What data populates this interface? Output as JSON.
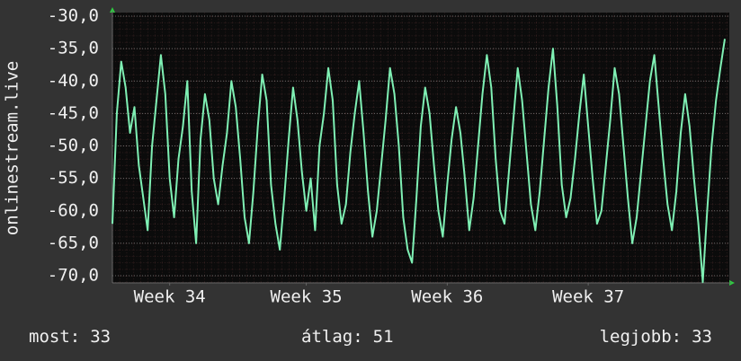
{
  "chart_data": {
    "type": "line",
    "y_label": "onlinestream.live",
    "x": [
      0,
      1,
      2,
      3,
      4,
      5,
      6,
      7,
      8,
      9,
      10,
      11,
      12,
      13,
      14,
      15,
      16,
      17,
      18,
      19,
      20,
      21,
      22,
      23,
      24,
      25,
      26,
      27,
      28,
      29,
      30,
      31,
      32,
      33,
      34,
      35,
      36,
      37,
      38,
      39,
      40,
      41,
      42,
      43,
      44,
      45,
      46,
      47,
      48,
      49,
      50,
      51,
      52,
      53,
      54,
      55,
      56,
      57,
      58,
      59,
      60,
      61,
      62,
      63,
      64,
      65,
      66,
      67,
      68,
      69,
      70,
      71,
      72,
      73,
      74,
      75,
      76,
      77,
      78,
      79,
      80,
      81,
      82,
      83,
      84,
      85,
      86,
      87,
      88,
      89,
      90,
      91,
      92,
      93,
      94,
      95,
      96,
      97,
      98,
      99,
      100,
      101,
      102,
      103,
      104,
      105,
      106,
      107,
      108,
      109,
      110,
      111,
      112,
      113,
      114,
      115,
      116,
      117,
      118,
      119,
      120,
      121,
      122,
      123,
      124,
      125,
      126,
      127,
      128,
      129,
      130,
      131,
      132,
      133,
      134,
      135,
      136,
      137,
      138,
      139
    ],
    "series": [
      {
        "color": "#7ff0b4",
        "values": [
          -62,
          -45,
          -37,
          -41,
          -48,
          -44,
          -53,
          -58,
          -63,
          -50,
          -43,
          -36,
          -42,
          -55,
          -61,
          -52,
          -47,
          -40,
          -57,
          -65,
          -49,
          -42,
          -46,
          -55,
          -59,
          -53,
          -48,
          -40,
          -44,
          -52,
          -61,
          -65,
          -57,
          -47,
          -39,
          -43,
          -56,
          -62,
          -66,
          -58,
          -49,
          -41,
          -46,
          -54,
          -60,
          -55,
          -63,
          -50,
          -45,
          -38,
          -43,
          -56,
          -62,
          -59,
          -51,
          -45,
          -40,
          -48,
          -57,
          -64,
          -60,
          -53,
          -46,
          -38,
          -42,
          -50,
          -61,
          -66,
          -68,
          -58,
          -47,
          -41,
          -45,
          -53,
          -60,
          -64,
          -56,
          -49,
          -44,
          -48,
          -55,
          -63,
          -58,
          -50,
          -42,
          -36,
          -41,
          -52,
          -60,
          -62,
          -54,
          -46,
          -38,
          -43,
          -51,
          -59,
          -63,
          -57,
          -49,
          -41,
          -35,
          -44,
          -56,
          -61,
          -58,
          -52,
          -45,
          -39,
          -47,
          -55,
          -62,
          -60,
          -53,
          -46,
          -38,
          -42,
          -50,
          -58,
          -65,
          -61,
          -54,
          -47,
          -40,
          -36,
          -44,
          -52,
          -59,
          -63,
          -57,
          -48,
          -42,
          -47,
          -55,
          -62,
          -71,
          -60,
          -50,
          -43,
          -38,
          -33.5
        ]
      }
    ],
    "xlim": [
      0,
      139
    ],
    "xticks": [
      {
        "value": 13,
        "label": "Week 34"
      },
      {
        "value": 44,
        "label": "Week 35"
      },
      {
        "value": 76,
        "label": "Week 36"
      },
      {
        "value": 108,
        "label": "Week 37"
      }
    ],
    "ylim": [
      -70,
      -30
    ],
    "yticks": [
      {
        "value": -30,
        "label": "-30,0"
      },
      {
        "value": -35,
        "label": "-35,0"
      },
      {
        "value": -40,
        "label": "-40,0"
      },
      {
        "value": -45,
        "label": "-45,0"
      },
      {
        "value": -50,
        "label": "-50,0"
      },
      {
        "value": -55,
        "label": "-55,0"
      },
      {
        "value": -60,
        "label": "-60,0"
      },
      {
        "value": -65,
        "label": "-65,0"
      },
      {
        "value": -70,
        "label": "-70,0"
      }
    ],
    "grid": true,
    "stats": [
      {
        "label": "most:",
        "value": 33
      },
      {
        "label": "átlag:",
        "value": 51
      },
      {
        "label": "legjobb:",
        "value": 33
      }
    ]
  }
}
